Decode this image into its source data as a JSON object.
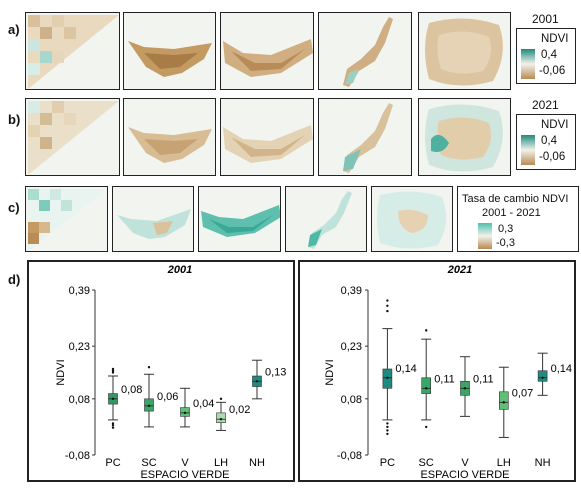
{
  "row_labels": {
    "a": "a)",
    "b": "b)",
    "c": "c)",
    "d": "d)"
  },
  "legend_a": {
    "year": "2001",
    "title": "NDVI",
    "max": "0,4",
    "min": "-0,06",
    "color_high": "#1f8a7c",
    "color_low": "#b88a52"
  },
  "legend_b": {
    "year": "2021",
    "title": "NDVI",
    "max": "0,4",
    "min": "-0,06",
    "color_high": "#1f8a7c",
    "color_low": "#b88a52"
  },
  "legend_c": {
    "title": "Tasa de cambio NDVI",
    "period": "2001 - 2021",
    "max": "0,3",
    "min": "-0,3",
    "color_high": "#4fbfae",
    "color_low": "#b88a52"
  },
  "chart_data": [
    {
      "type": "box",
      "title": "2001",
      "xlabel": "ESPACIO VERDE",
      "ylabel": "NDVI",
      "ylim": [
        -0.08,
        0.39
      ],
      "yticks": [
        "0,39",
        "0,23",
        "0,08",
        "-0,08"
      ],
      "categories": [
        "PC",
        "SC",
        "V",
        "LH",
        "NH"
      ],
      "boxes": [
        {
          "label": "PC",
          "mean_label": "0,08",
          "min": 0.02,
          "q1": 0.065,
          "median": 0.08,
          "q3": 0.095,
          "max": 0.145,
          "outliers": [
            0.155,
            0.16,
            0.165,
            -0.002,
            0.005,
            0.01
          ],
          "color": "#2f9a64"
        },
        {
          "label": "SC",
          "mean_label": "0,06",
          "min": 0.0,
          "q1": 0.045,
          "median": 0.06,
          "q3": 0.08,
          "max": 0.15,
          "outliers": [
            0.17
          ],
          "color": "#3aa566"
        },
        {
          "label": "V",
          "mean_label": "0,04",
          "min": 0.0,
          "q1": 0.03,
          "median": 0.04,
          "q3": 0.055,
          "max": 0.11,
          "outliers": [],
          "color": "#5fbf75"
        },
        {
          "label": "LH",
          "mean_label": "0,02",
          "min": -0.01,
          "q1": 0.012,
          "median": 0.022,
          "q3": 0.04,
          "max": 0.07,
          "outliers": [
            0.08
          ],
          "color": "#a9dbb1"
        },
        {
          "label": "NH",
          "mean_label": "0,13",
          "min": 0.08,
          "q1": 0.115,
          "median": 0.13,
          "q3": 0.145,
          "max": 0.19,
          "outliers": [],
          "color": "#1f8a80"
        }
      ]
    },
    {
      "type": "box",
      "title": "2021",
      "xlabel": "ESPACIO VERDE",
      "ylabel": "NDVI",
      "ylim": [
        -0.08,
        0.39
      ],
      "yticks": [
        "0,39",
        "0,23",
        "0,08",
        "-0,08"
      ],
      "categories": [
        "PC",
        "SC",
        "V",
        "LH",
        "NH"
      ],
      "boxes": [
        {
          "label": "PC",
          "mean_label": "0,14",
          "min": 0.02,
          "q1": 0.11,
          "median": 0.14,
          "q3": 0.165,
          "max": 0.28,
          "outliers": [
            0.33,
            0.345,
            0.36,
            -0.02,
            -0.01,
            0.0,
            0.01
          ],
          "color": "#1f8a80"
        },
        {
          "label": "SC",
          "mean_label": "0,11",
          "min": 0.02,
          "q1": 0.095,
          "median": 0.11,
          "q3": 0.14,
          "max": 0.25,
          "outliers": [
            0.275,
            0.0
          ],
          "color": "#3aa566"
        },
        {
          "label": "V",
          "mean_label": "0,11",
          "min": 0.03,
          "q1": 0.09,
          "median": 0.11,
          "q3": 0.13,
          "max": 0.2,
          "outliers": [],
          "color": "#3aa566"
        },
        {
          "label": "LH",
          "mean_label": "0,07",
          "min": -0.03,
          "q1": 0.05,
          "median": 0.07,
          "q3": 0.1,
          "max": 0.17,
          "outliers": [],
          "color": "#5fbf75"
        },
        {
          "label": "NH",
          "mean_label": "0,14",
          "min": 0.09,
          "q1": 0.13,
          "median": 0.14,
          "q3": 0.16,
          "max": 0.21,
          "outliers": [],
          "color": "#1f8a80"
        }
      ]
    }
  ]
}
